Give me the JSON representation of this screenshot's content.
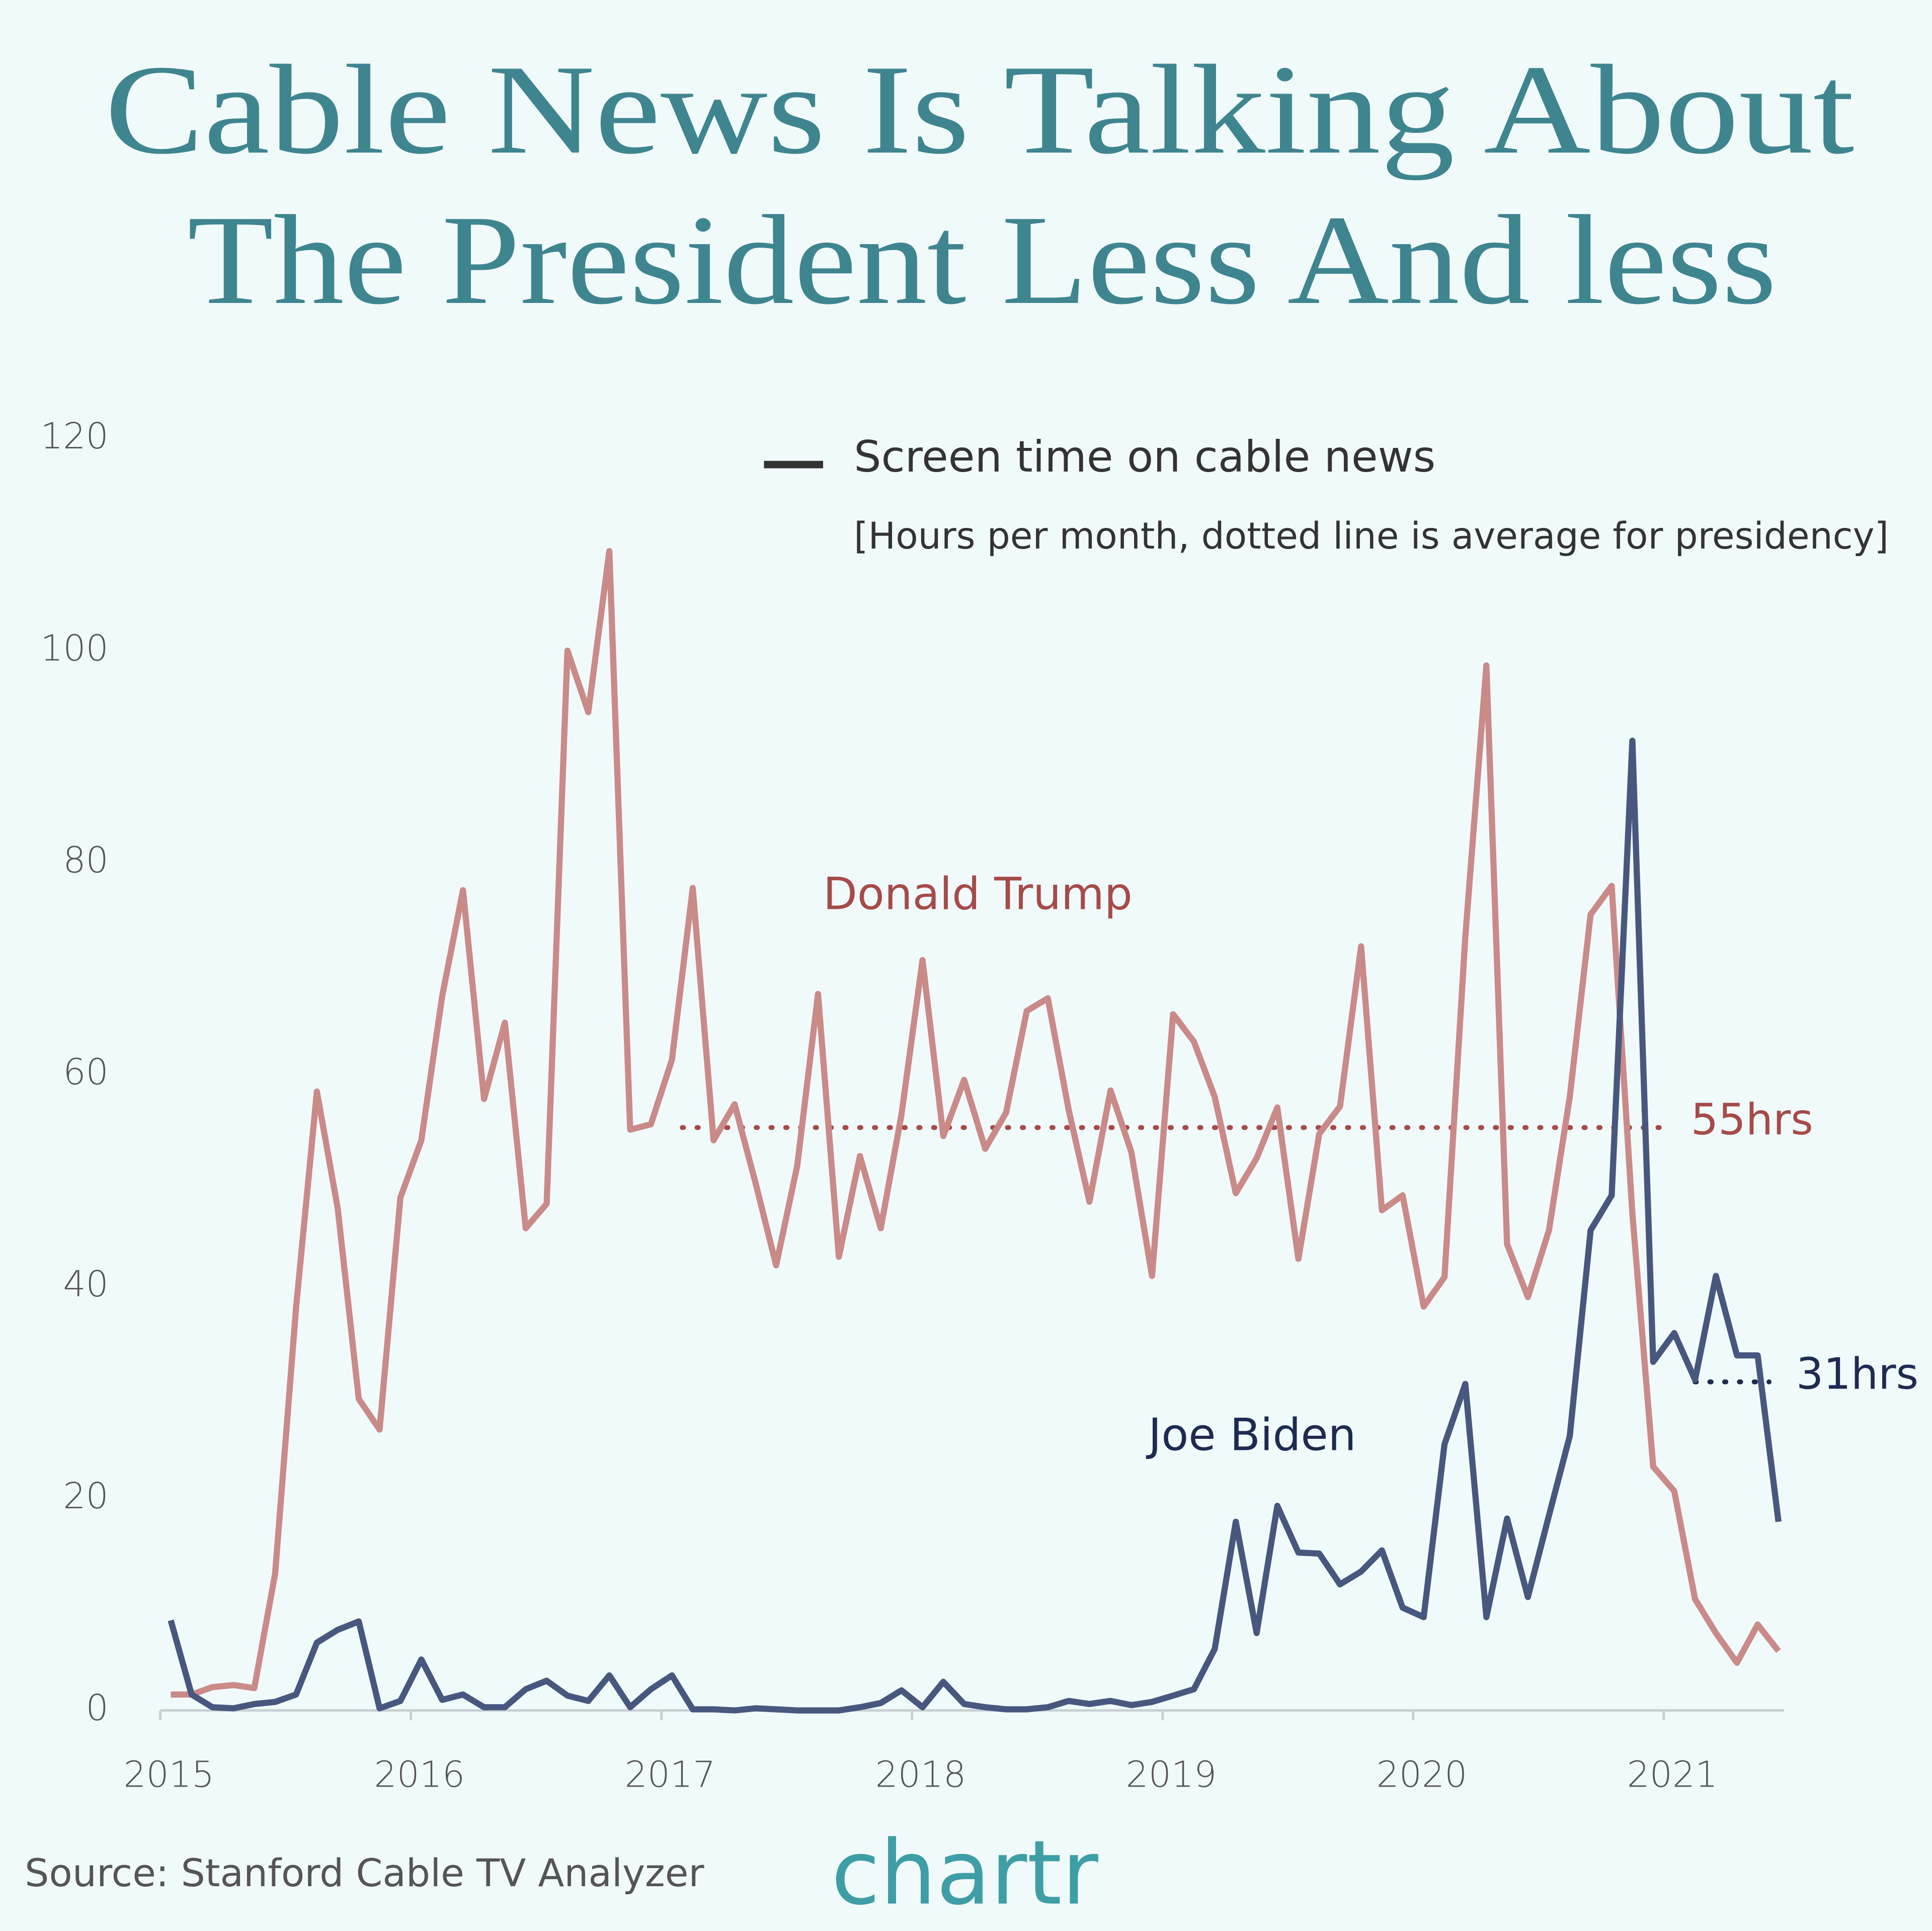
{
  "chart_data": {
    "type": "line",
    "title": [
      "Cable News Is Talking About",
      "The President Less And less"
    ],
    "legend_title": "Screen time on cable news",
    "subtitle": "[Hours per month, dotted line is average for presidency]",
    "legend_color": "#333333",
    "source": "Source: Stanford Cable TV Analyzer",
    "brand": "chartr",
    "xlim": [
      2015,
      2021.48
    ],
    "xticks": [
      2015,
      2016,
      2017,
      2018,
      2019,
      2020,
      2021
    ],
    "ylim": [
      0,
      120
    ],
    "yticks": [
      0,
      20,
      40,
      60,
      80,
      100,
      120
    ],
    "x": [
      2015.042,
      2015.125,
      2015.208,
      2015.292,
      2015.375,
      2015.458,
      2015.542,
      2015.625,
      2015.708,
      2015.792,
      2015.875,
      2015.958,
      2016.042,
      2016.125,
      2016.208,
      2016.292,
      2016.375,
      2016.458,
      2016.542,
      2016.625,
      2016.708,
      2016.792,
      2016.875,
      2016.958,
      2017.042,
      2017.125,
      2017.208,
      2017.292,
      2017.375,
      2017.458,
      2017.542,
      2017.625,
      2017.708,
      2017.792,
      2017.875,
      2017.958,
      2018.042,
      2018.125,
      2018.208,
      2018.292,
      2018.375,
      2018.458,
      2018.542,
      2018.625,
      2018.708,
      2018.792,
      2018.875,
      2018.958,
      2019.042,
      2019.125,
      2019.208,
      2019.292,
      2019.375,
      2019.458,
      2019.542,
      2019.625,
      2019.708,
      2019.792,
      2019.875,
      2019.958,
      2020.042,
      2020.125,
      2020.208,
      2020.292,
      2020.375,
      2020.458,
      2020.542,
      2020.625,
      2020.708,
      2020.792,
      2020.875,
      2020.958,
      2021.042,
      2021.125,
      2021.208,
      2021.292,
      2021.375,
      2021.458
    ],
    "series": [
      {
        "name": "Donald Trump",
        "color": "#c98a88",
        "label_color": "#a64b48",
        "values": [
          1.5,
          1.5,
          2.2,
          2.4,
          2.1,
          12.9,
          38,
          58.4,
          47.4,
          29.4,
          26.5,
          48.4,
          53.8,
          67.4,
          77.4,
          57.7,
          64.9,
          45.5,
          47.8,
          100,
          94.2,
          109.4,
          54.8,
          55.3,
          61.4,
          77.6,
          53.8,
          57.2,
          49.8,
          42,
          51.4,
          67.6,
          42.8,
          52.3,
          45.5,
          56.2,
          70.8,
          54.2,
          59.5,
          53,
          56.4,
          66,
          67.2,
          56.7,
          48,
          58.5,
          52.7,
          41,
          65.7,
          63.1,
          57.9,
          48.8,
          52.1,
          56.9,
          42.6,
          54.4,
          57,
          72.1,
          47.2,
          48.6,
          38.1,
          40.9,
          73,
          98.6,
          44,
          39,
          45.3,
          57.9,
          75.1,
          77.8,
          46.9,
          23,
          20.7,
          10.5,
          7.3,
          4.5,
          8.1,
          5.6
        ]
      },
      {
        "name": "Joe Biden",
        "color": "#47577e",
        "label_color": "#1d2a52",
        "values": [
          8.5,
          1.5,
          0.3,
          0.2,
          0.6,
          0.8,
          1.5,
          6.4,
          7.6,
          8.4,
          0.2,
          0.9,
          4.8,
          1,
          1.5,
          0.3,
          0.3,
          2,
          2.8,
          1.4,
          0.9,
          3.3,
          0.3,
          2,
          3.3,
          0.1,
          0.1,
          0,
          0.2,
          0.1,
          0,
          0,
          0,
          0.3,
          0.7,
          1.9,
          0.3,
          2.7,
          0.6,
          0.3,
          0.1,
          0.1,
          0.3,
          0.9,
          0.6,
          0.9,
          0.5,
          0.8,
          1.4,
          2,
          5.8,
          17.8,
          7.3,
          19.3,
          14.9,
          14.8,
          11.9,
          13.1,
          15.1,
          9.7,
          8.8,
          25.1,
          30.8,
          8.8,
          18.1,
          10.7,
          18.4,
          25.9,
          45.3,
          48.6,
          91.5,
          32.9,
          35.6,
          31.2,
          41,
          33.5,
          33.5,
          17.8
        ]
      }
    ],
    "reference_lines": [
      {
        "value": 55,
        "label": "55hrs",
        "x": [
          2017.083,
          2021.0
        ],
        "color": "#a64b48"
      },
      {
        "value": 31,
        "label": "31hrs",
        "x": [
          2021.125,
          2021.42
        ],
        "color": "#1d2a52"
      }
    ]
  }
}
